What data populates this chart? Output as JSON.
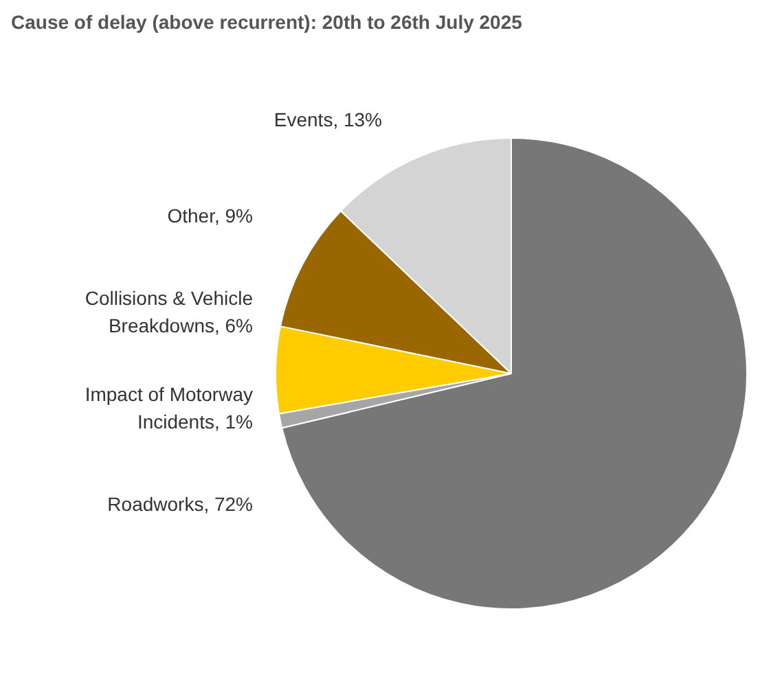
{
  "chart_data": {
    "type": "pie",
    "title": "Cause of delay (above recurrent): 20th to 26th July 2025",
    "categories": [
      "Roadworks, 72%",
      "Impact of Motorway Incidents, 1%",
      "Collisions & Vehicle Breakdowns, 6%",
      "Other, 9%",
      "Events, 13%"
    ],
    "values": [
      72,
      1,
      6,
      9,
      13
    ],
    "colors": [
      "#777777",
      "#a6a6a6",
      "#ffcc00",
      "#996600",
      "#d4d4d4"
    ]
  }
}
